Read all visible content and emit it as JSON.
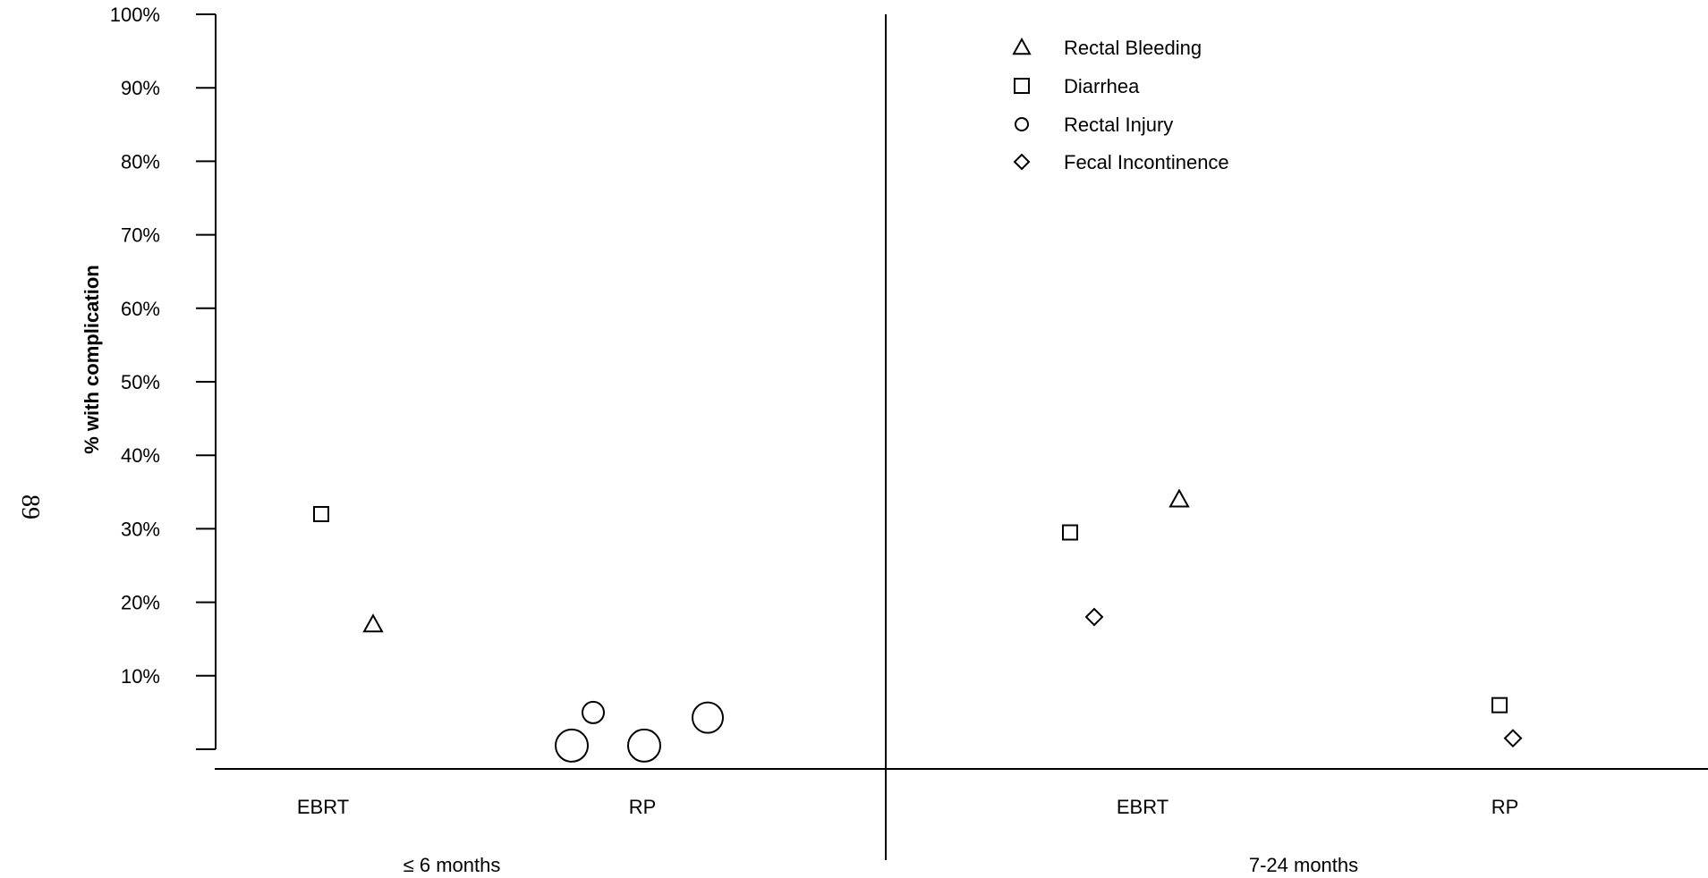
{
  "page_number": "89",
  "chart_data": {
    "type": "scatter",
    "title": "",
    "xlabel": "",
    "ylabel": "% with complication",
    "ylim": [
      0,
      100
    ],
    "y_ticks": [
      10,
      20,
      30,
      40,
      50,
      60,
      70,
      80,
      90,
      100
    ],
    "y_tick_labels": [
      "10%",
      "20%",
      "30%",
      "40%",
      "50%",
      "60%",
      "70%",
      "80%",
      "90%",
      "100%"
    ],
    "grid": false,
    "legend_position": "top-right",
    "panels": [
      {
        "name": "≤ 6 months",
        "groups": [
          "EBRT",
          "RP"
        ]
      },
      {
        "name": "7-24 months",
        "groups": [
          "EBRT",
          "RP"
        ]
      }
    ],
    "series": [
      {
        "name": "Rectal Bleeding",
        "marker": "triangle",
        "points": [
          {
            "panel": "≤ 6 months",
            "group": "EBRT",
            "y": 17
          },
          {
            "panel": "7-24 months",
            "group": "EBRT",
            "y": 34
          }
        ]
      },
      {
        "name": "Diarrhea",
        "marker": "square",
        "points": [
          {
            "panel": "≤ 6 months",
            "group": "EBRT",
            "y": 32
          },
          {
            "panel": "7-24 months",
            "group": "EBRT",
            "y": 29.5
          },
          {
            "panel": "7-24 months",
            "group": "RP",
            "y": 6
          }
        ]
      },
      {
        "name": "Rectal Injury",
        "marker": "circle",
        "points": [
          {
            "panel": "≤ 6 months",
            "group": "RP",
            "y": 0.5
          },
          {
            "panel": "≤ 6 months",
            "group": "RP",
            "y": 5
          },
          {
            "panel": "≤ 6 months",
            "group": "RP",
            "y": 0.5
          },
          {
            "panel": "≤ 6 months",
            "group": "RP",
            "y": 4.3
          }
        ]
      },
      {
        "name": "Fecal Incontinence",
        "marker": "diamond",
        "points": [
          {
            "panel": "7-24 months",
            "group": "EBRT",
            "y": 18
          },
          {
            "panel": "7-24 months",
            "group": "RP",
            "y": 1.5
          }
        ]
      }
    ]
  }
}
